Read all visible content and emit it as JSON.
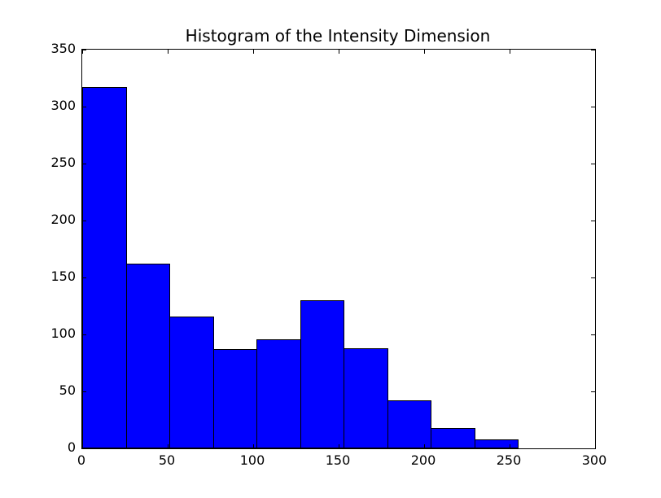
{
  "figure": {
    "background_color": "#ffffff",
    "frame_color": "#000000",
    "text_color": "#000000"
  },
  "chart_data": {
    "type": "bar",
    "subtype": "histogram",
    "title": "Histogram of the Intensity Dimension",
    "xlabel": "",
    "ylabel": "",
    "bin_edges": [
      0,
      25.5,
      51,
      76.5,
      102,
      127.5,
      153,
      178.5,
      204,
      229.5,
      255
    ],
    "values": [
      317,
      162,
      116,
      87,
      96,
      130,
      88,
      42,
      18,
      8
    ],
    "xlim": [
      0,
      300
    ],
    "ylim": [
      0,
      350
    ],
    "xticks": [
      0,
      50,
      100,
      150,
      200,
      250,
      300
    ],
    "yticks": [
      0,
      50,
      100,
      150,
      200,
      250,
      300,
      350
    ],
    "grid": false,
    "legend_position": "none",
    "bar_fill_color": "#0000ff",
    "bar_edge_color": "#000000"
  }
}
